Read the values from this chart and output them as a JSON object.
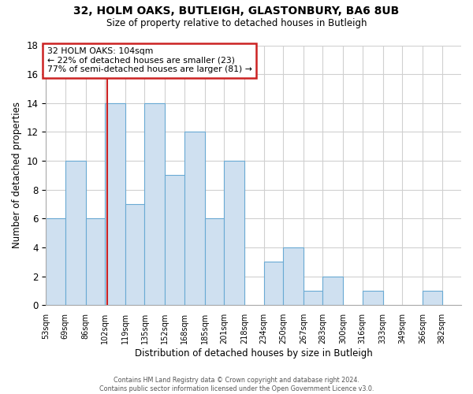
{
  "title1": "32, HOLM OAKS, BUTLEIGH, GLASTONBURY, BA6 8UB",
  "title2": "Size of property relative to detached houses in Butleigh",
  "xlabel": "Distribution of detached houses by size in Butleigh",
  "ylabel": "Number of detached properties",
  "bar_color": "#cfe0f0",
  "bar_edge_color": "#6aaad4",
  "annotation_title": "32 HOLM OAKS: 104sqm",
  "annotation_line1": "← 22% of detached houses are smaller (23)",
  "annotation_line2": "77% of semi-detached houses are larger (81) →",
  "annotation_box_color": "#ffffff",
  "annotation_box_edge": "#cc2222",
  "marker_line_color": "#cc2222",
  "footer_line1": "Contains HM Land Registry data © Crown copyright and database right 2024.",
  "footer_line2": "Contains public sector information licensed under the Open Government Licence v3.0.",
  "bins": [
    53,
    69,
    86,
    102,
    119,
    135,
    152,
    168,
    185,
    201,
    218,
    234,
    250,
    267,
    283,
    300,
    316,
    333,
    349,
    366,
    382
  ],
  "counts": [
    6,
    10,
    6,
    14,
    7,
    14,
    9,
    12,
    6,
    10,
    0,
    3,
    4,
    1,
    2,
    0,
    1,
    0,
    0,
    1
  ],
  "bin_labels": [
    "53sqm",
    "69sqm",
    "86sqm",
    "102sqm",
    "119sqm",
    "135sqm",
    "152sqm",
    "168sqm",
    "185sqm",
    "201sqm",
    "218sqm",
    "234sqm",
    "250sqm",
    "267sqm",
    "283sqm",
    "300sqm",
    "316sqm",
    "333sqm",
    "349sqm",
    "366sqm",
    "382sqm"
  ],
  "ylim": [
    0,
    18
  ],
  "yticks": [
    0,
    2,
    4,
    6,
    8,
    10,
    12,
    14,
    16,
    18
  ],
  "property_value": 104,
  "background_color": "#ffffff",
  "grid_color": "#d0d0d0"
}
